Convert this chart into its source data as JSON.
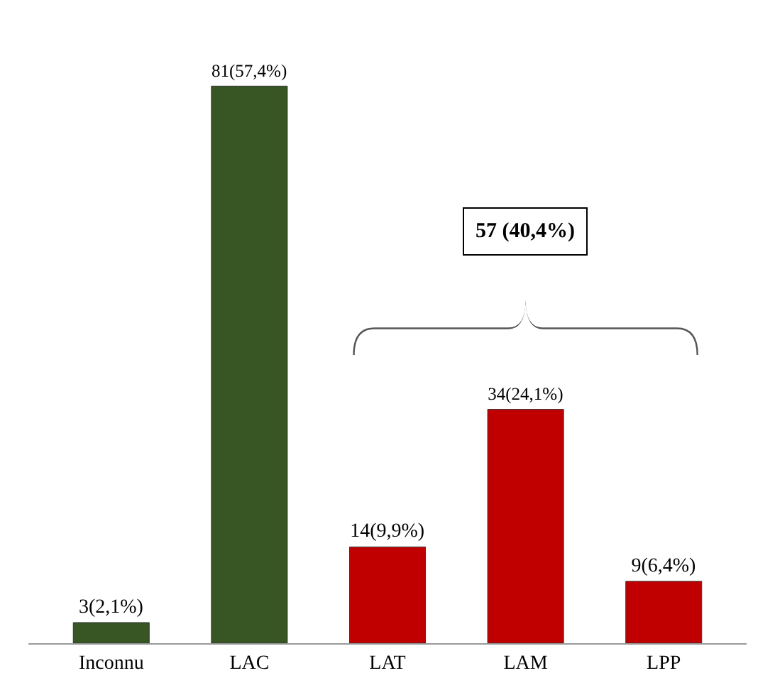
{
  "chart_data": {
    "type": "bar",
    "categories": [
      "Inconnu",
      "LAC",
      "LAT",
      "LAM",
      "LPP"
    ],
    "values": [
      3,
      81,
      14,
      34,
      9
    ],
    "colors": [
      "#375623",
      "#375623",
      "#c00000",
      "#c00000",
      "#c00000"
    ],
    "value_labels": [
      "3(2,1%)",
      "81(57,4%)",
      "14(9,9%)",
      "34(24,1%)",
      "9(6,4%)"
    ],
    "annotations": [
      "57 (40,4%)"
    ],
    "tick_labels": "x",
    "grid": false
  }
}
